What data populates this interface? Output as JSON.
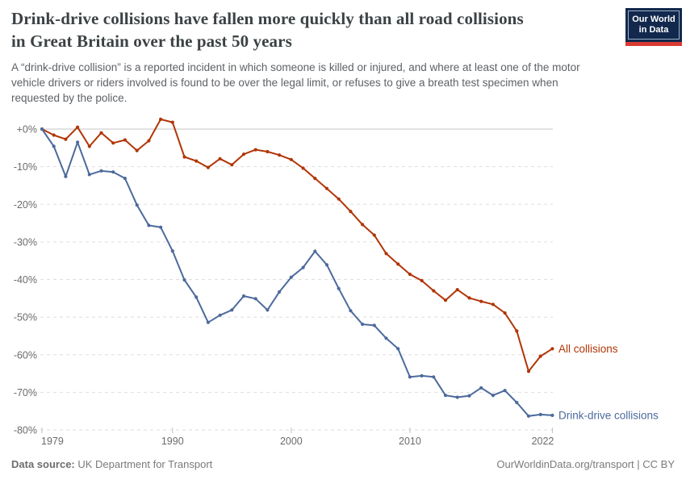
{
  "header": {
    "title_lines": [
      "Drink-drive collisions have fallen more quickly than all road collisions",
      "in Great Britain over the past 50 years"
    ],
    "subtitle_lines": [
      "A “drink-drive collision” is a reported incident in which someone is killed or injured, and where at least one of the motor",
      "vehicle drivers or riders involved is found to be over the legal limit, or refuses to give a breath test specimen when",
      "requested by the police."
    ]
  },
  "logo": {
    "line1": "Our World",
    "line2": "in Data",
    "bg_color": "#12294d",
    "stripe_color": "#d93a32"
  },
  "chart_data": {
    "type": "line",
    "x_label": "",
    "y_label": "",
    "x": [
      1979,
      1980,
      1981,
      1982,
      1983,
      1984,
      1985,
      1986,
      1987,
      1988,
      1989,
      1990,
      1991,
      1992,
      1993,
      1994,
      1995,
      1996,
      1997,
      1998,
      1999,
      2000,
      2001,
      2002,
      2003,
      2004,
      2005,
      2006,
      2007,
      2008,
      2009,
      2010,
      2011,
      2012,
      2013,
      2014,
      2015,
      2016,
      2017,
      2018,
      2019,
      2020,
      2021,
      2022
    ],
    "x_ticks": [
      1979,
      1990,
      2000,
      2010,
      2022
    ],
    "y_tick_labels": [
      "+0%",
      "-10%",
      "-20%",
      "-30%",
      "-40%",
      "-50%",
      "-60%",
      "-70%",
      "-80%"
    ],
    "y_tick_values": [
      0,
      -10,
      -20,
      -30,
      -40,
      -50,
      -60,
      -70,
      -80
    ],
    "ylim": [
      -80,
      0
    ],
    "grid": "horizontal dashed gridlines, solid zero line, legend as end-of-line labels",
    "series": [
      {
        "name": "All collisions",
        "color": "#b13507",
        "values": [
          0,
          -1.6,
          -2.7,
          0.5,
          -4.6,
          -1.0,
          -3.7,
          -2.9,
          -5.7,
          -3.1,
          2.6,
          1.8,
          -7.4,
          -8.5,
          -10.2,
          -7.9,
          -9.5,
          -6.7,
          -5.5,
          -6.0,
          -6.9,
          -8.1,
          -10.4,
          -13.1,
          -15.8,
          -18.6,
          -21.9,
          -25.4,
          -28.2,
          -33.1,
          -35.9,
          -38.6,
          -40.3,
          -43.0,
          -45.5,
          -42.7,
          -44.9,
          -45.8,
          -46.6,
          -48.9,
          -53.7,
          -64.4,
          -60.4,
          -58.4
        ]
      },
      {
        "name": "Drink-drive collisions",
        "color": "#4c6a9c",
        "values": [
          0,
          -4.6,
          -12.6,
          -3.5,
          -12.1,
          -11.1,
          -11.4,
          -13.1,
          -20.2,
          -25.6,
          -26.1,
          -32.4,
          -40.1,
          -44.7,
          -51.4,
          -49.5,
          -48.1,
          -44.4,
          -45.1,
          -48.1,
          -43.3,
          -39.4,
          -36.8,
          -32.5,
          -36.1,
          -42.4,
          -48.3,
          -51.9,
          -52.2,
          -55.6,
          -58.4,
          -65.9,
          -65.6,
          -65.9,
          -70.8,
          -71.3,
          -70.9,
          -68.8,
          -70.8,
          -69.5,
          -72.7,
          -76.3,
          -75.9,
          -76.1
        ]
      }
    ],
    "zero_line_color": "#c4c4c4",
    "gridline_color": "#dedede",
    "axis_text_color": "#6b6b6b"
  },
  "footer": {
    "source_label": "Data source:",
    "source_value": "UK Department for Transport",
    "credit": "OurWorldinData.org/transport | CC BY"
  }
}
